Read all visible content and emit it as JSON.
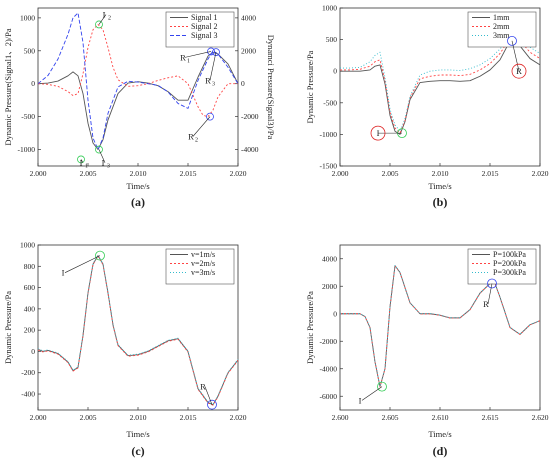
{
  "chart_data": [
    {
      "panel": "(a)",
      "type": "line",
      "xlabel": "Time/s",
      "ylabel": "Dynamic Pressure(Signal1、2)/Pa",
      "ylabel_right": "Dynamci Pressure(Signal3)/Pa",
      "xlim": [
        2.0,
        2.02
      ],
      "ylim": [
        -1250,
        1150
      ],
      "ylim_right": [
        -5000,
        4600
      ],
      "xticks": [
        "2.000",
        "2.005",
        "2.010",
        "2.015",
        "2.020"
      ],
      "yticks": [
        "1000",
        "500",
        "0",
        "-500",
        "-1000"
      ],
      "yticks_right": [
        "4000",
        "2000",
        "0",
        "-2000",
        "-4000"
      ],
      "legend": "top-right",
      "series": [
        {
          "name": "Signal 1",
          "color": "#555555",
          "dash": "",
          "axis": "left",
          "x": [
            2.0,
            2.001,
            2.002,
            2.003,
            2.0035,
            2.004,
            2.0045,
            2.005,
            2.0055,
            2.006,
            2.0065,
            2.007,
            2.008,
            2.009,
            2.01,
            2.011,
            2.012,
            2.013,
            2.014,
            2.015,
            2.016,
            2.017,
            2.0175,
            2.018,
            2.019,
            2.02
          ],
          "y": [
            0,
            10,
            40,
            120,
            180,
            120,
            -150,
            -600,
            -900,
            -1000,
            -850,
            -550,
            -150,
            10,
            30,
            10,
            -30,
            -120,
            -250,
            -250,
            100,
            420,
            480,
            450,
            300,
            0
          ]
        },
        {
          "name": "Signal 2",
          "color": "#ff4444",
          "dash": "2,2",
          "axis": "left",
          "x": [
            2.0,
            2.001,
            2.002,
            2.003,
            2.0035,
            2.004,
            2.0045,
            2.005,
            2.0055,
            2.006,
            2.0065,
            2.007,
            2.0075,
            2.008,
            2.009,
            2.01,
            2.011,
            2.012,
            2.013,
            2.014,
            2.015,
            2.016,
            2.0165,
            2.017,
            2.0175,
            2.018,
            2.019,
            2.02
          ],
          "y": [
            0,
            -10,
            -40,
            -120,
            -180,
            -150,
            150,
            550,
            820,
            900,
            820,
            550,
            250,
            60,
            -40,
            -30,
            0,
            50,
            90,
            120,
            0,
            -350,
            -480,
            -500,
            -400,
            -200,
            0,
            0
          ]
        },
        {
          "name": "Signal 3",
          "color": "#3344ee",
          "dash": "4,2",
          "axis": "right",
          "x": [
            2.0,
            2.001,
            2.002,
            2.003,
            2.0035,
            2.004,
            2.0045,
            2.005,
            2.0055,
            2.006,
            2.0065,
            2.007,
            2.008,
            2.009,
            2.01,
            2.011,
            2.012,
            2.013,
            2.014,
            2.015,
            2.016,
            2.017,
            2.0175,
            2.018,
            2.019,
            2.02
          ],
          "y": [
            0,
            500,
            1500,
            3000,
            4000,
            4300,
            2500,
            -1000,
            -3300,
            -4000,
            -3300,
            -1800,
            -200,
            150,
            100,
            0,
            -100,
            -500,
            -1200,
            -1500,
            200,
            1500,
            2000,
            1800,
            1000,
            0
          ]
        }
      ],
      "annotations": [
        {
          "text": "I",
          "sub": "1",
          "x": 2.0043,
          "y": -1150,
          "tx": 2.0045,
          "ty": -1200
        },
        {
          "text": "I",
          "sub": "3",
          "x": 2.0061,
          "y": -1000,
          "tx": 2.0067,
          "ty": -1200
        },
        {
          "text": "I",
          "sub": "2",
          "x": 2.0061,
          "y": 900,
          "tx": 2.0068,
          "ty": 1050
        },
        {
          "text": "R",
          "sub": "1",
          "x": 2.0173,
          "y": 490,
          "tx": 2.0147,
          "ty": 400
        },
        {
          "text": "R",
          "sub": "3",
          "x": 2.0178,
          "y": 480,
          "tx": 2.0172,
          "ty": 50
        },
        {
          "text": "R",
          "sub": "2",
          "x": 2.0172,
          "y": -500,
          "tx": 2.0155,
          "ty": -800
        }
      ]
    },
    {
      "panel": "(b)",
      "type": "line",
      "xlabel": "Time/s",
      "ylabel": "Dynamic Pressure/Pa",
      "xlim": [
        2.0,
        2.02
      ],
      "ylim": [
        -1500,
        1000
      ],
      "xticks": [
        "2.000",
        "2.005",
        "2.010",
        "2.015",
        "2.020"
      ],
      "yticks": [
        "1000",
        "500",
        "0",
        "-500",
        "-1000",
        "-1500"
      ],
      "legend": "top-right",
      "series": [
        {
          "name": "1mm",
          "color": "#555555",
          "dash": "",
          "x": [
            2.0,
            2.001,
            2.002,
            2.003,
            2.0035,
            2.004,
            2.0045,
            2.005,
            2.0055,
            2.006,
            2.0065,
            2.007,
            2.008,
            2.009,
            2.01,
            2.011,
            2.012,
            2.013,
            2.014,
            2.015,
            2.016,
            2.017,
            2.0175,
            2.018,
            2.019,
            2.02
          ],
          "y": [
            0,
            0,
            0,
            20,
            80,
            100,
            -200,
            -700,
            -950,
            -1000,
            -800,
            -450,
            -180,
            -160,
            -150,
            -150,
            -160,
            -150,
            -80,
            20,
            180,
            480,
            500,
            400,
            200,
            100
          ]
        },
        {
          "name": "2mm",
          "color": "#ff4444",
          "dash": "2,2",
          "x": [
            2.0,
            2.001,
            2.002,
            2.003,
            2.0035,
            2.004,
            2.0045,
            2.005,
            2.0055,
            2.006,
            2.0065,
            2.007,
            2.008,
            2.009,
            2.01,
            2.011,
            2.012,
            2.013,
            2.014,
            2.015,
            2.016,
            2.017,
            2.0175,
            2.018,
            2.019,
            2.02
          ],
          "y": [
            20,
            20,
            30,
            80,
            150,
            180,
            -150,
            -650,
            -900,
            -980,
            -780,
            -420,
            -120,
            -80,
            -60,
            -60,
            -70,
            -50,
            20,
            120,
            280,
            520,
            560,
            480,
            300,
            200
          ]
        },
        {
          "name": "3mm",
          "color": "#33bbcc",
          "dash": "1,2",
          "x": [
            2.0,
            2.001,
            2.002,
            2.003,
            2.0035,
            2.004,
            2.0045,
            2.005,
            2.0055,
            2.006,
            2.0065,
            2.007,
            2.008,
            2.009,
            2.01,
            2.011,
            2.012,
            2.013,
            2.014,
            2.015,
            2.016,
            2.017,
            2.0175,
            2.018,
            2.019,
            2.02
          ],
          "y": [
            50,
            50,
            60,
            150,
            250,
            300,
            -100,
            -600,
            -850,
            -950,
            -750,
            -400,
            -60,
            0,
            20,
            20,
            10,
            40,
            100,
            200,
            350,
            560,
            600,
            540,
            380,
            280
          ]
        }
      ],
      "annotations": [
        {
          "text": "I",
          "x": 2.0062,
          "y": -980,
          "tx": 2.0038,
          "ty": -980,
          "circle": true
        },
        {
          "text": "R",
          "x": 2.0172,
          "y": 480,
          "tx": 2.0179,
          "ty": 0,
          "circle": true
        }
      ]
    },
    {
      "panel": "(c)",
      "type": "line",
      "xlabel": "Time/s",
      "ylabel": "Dynamic Pressure/Pa",
      "xlim": [
        2.0,
        2.02
      ],
      "ylim": [
        -550,
        1000
      ],
      "xticks": [
        "2.000",
        "2.005",
        "2.010",
        "2.015",
        "2.020"
      ],
      "yticks": [
        "1000",
        "800",
        "600",
        "400",
        "200",
        "0",
        "-200",
        "-400"
      ],
      "legend": "top-right",
      "series": [
        {
          "name": "v=1m/s",
          "color": "#555555",
          "dash": "",
          "x": [
            2.0,
            2.0005,
            2.001,
            2.002,
            2.003,
            2.0035,
            2.004,
            2.0045,
            2.005,
            2.0055,
            2.006,
            2.0065,
            2.007,
            2.0075,
            2.008,
            2.009,
            2.01,
            2.011,
            2.012,
            2.013,
            2.014,
            2.015,
            2.016,
            2.017,
            2.0175,
            2.018,
            2.019,
            2.02
          ],
          "y": [
            20,
            0,
            10,
            -20,
            -100,
            -180,
            -150,
            150,
            550,
            820,
            900,
            820,
            550,
            250,
            60,
            -40,
            -30,
            0,
            50,
            100,
            120,
            0,
            -350,
            -480,
            -500,
            -420,
            -200,
            -80
          ]
        },
        {
          "name": "v=2m/s",
          "color": "#ff4444",
          "dash": "2,2",
          "x": [
            2.0,
            2.0005,
            2.001,
            2.002,
            2.003,
            2.0035,
            2.004,
            2.0045,
            2.005,
            2.0055,
            2.006,
            2.0065,
            2.007,
            2.0075,
            2.008,
            2.009,
            2.01,
            2.011,
            2.012,
            2.013,
            2.014,
            2.015,
            2.016,
            2.017,
            2.0175,
            2.018,
            2.019,
            2.02
          ],
          "y": [
            15,
            -5,
            5,
            -25,
            -105,
            -185,
            -155,
            145,
            545,
            815,
            895,
            815,
            545,
            245,
            55,
            -45,
            -35,
            -5,
            45,
            95,
            115,
            -5,
            -355,
            -485,
            -505,
            -425,
            -205,
            -85
          ]
        },
        {
          "name": "v=3m/s",
          "color": "#33bbcc",
          "dash": "1,2",
          "x": [
            2.0,
            2.0005,
            2.001,
            2.002,
            2.003,
            2.0035,
            2.004,
            2.0045,
            2.005,
            2.0055,
            2.006,
            2.0065,
            2.007,
            2.0075,
            2.008,
            2.009,
            2.01,
            2.011,
            2.012,
            2.013,
            2.014,
            2.015,
            2.016,
            2.017,
            2.0175,
            2.018,
            2.019,
            2.02
          ],
          "y": [
            25,
            5,
            15,
            -15,
            -95,
            -175,
            -145,
            155,
            555,
            825,
            905,
            825,
            555,
            255,
            65,
            -35,
            -25,
            5,
            55,
            105,
            125,
            5,
            -345,
            -475,
            -495,
            -415,
            -195,
            -75
          ]
        }
      ],
      "annotations": [
        {
          "text": "I",
          "x": 2.0062,
          "y": 900,
          "tx": 2.0027,
          "ty": 740,
          "circle": true
        },
        {
          "text": "R",
          "x": 2.0174,
          "y": -500,
          "tx": 2.0167,
          "ty": -330,
          "circle": true
        }
      ]
    },
    {
      "panel": "(d)",
      "type": "line",
      "xlabel": "Time/s",
      "ylabel": "Dynamic Pressure/Pa",
      "xlim": [
        2.6,
        2.62
      ],
      "ylim": [
        -7000,
        5000
      ],
      "xticks": [
        "2.600",
        "2.605",
        "2.610",
        "2.615",
        "2.620"
      ],
      "yticks": [
        "4000",
        "2000",
        "0",
        "-2000",
        "-4000",
        "-6000"
      ],
      "legend": "top-right",
      "series": [
        {
          "name": "P=100kPa",
          "color": "#555555",
          "dash": "",
          "x": [
            2.6,
            2.601,
            2.602,
            2.6025,
            2.603,
            2.6035,
            2.604,
            2.6045,
            2.605,
            2.6055,
            2.606,
            2.607,
            2.608,
            2.609,
            2.61,
            2.611,
            2.612,
            2.613,
            2.614,
            2.615,
            2.6155,
            2.616,
            2.617,
            2.618,
            2.619,
            2.62
          ],
          "y": [
            0,
            0,
            0,
            -200,
            -1000,
            -3500,
            -5300,
            -4000,
            500,
            3500,
            3000,
            800,
            0,
            0,
            -100,
            -300,
            -300,
            300,
            1500,
            2200,
            2200,
            1200,
            -1000,
            -1500,
            -800,
            -500
          ]
        },
        {
          "name": "P=200kPa",
          "color": "#ff4444",
          "dash": "2,2",
          "x": [
            2.6,
            2.601,
            2.602,
            2.6025,
            2.603,
            2.6035,
            2.604,
            2.6045,
            2.605,
            2.6055,
            2.606,
            2.607,
            2.608,
            2.609,
            2.61,
            2.611,
            2.612,
            2.613,
            2.614,
            2.615,
            2.6155,
            2.616,
            2.617,
            2.618,
            2.619,
            2.62
          ],
          "y": [
            0,
            0,
            0,
            -210,
            -1010,
            -3510,
            -5310,
            -4010,
            490,
            3490,
            2990,
            790,
            -10,
            -10,
            -110,
            -310,
            -310,
            290,
            1490,
            2190,
            2190,
            1190,
            -1010,
            -1510,
            -810,
            -510
          ]
        },
        {
          "name": "P=300kPa",
          "color": "#33bbcc",
          "dash": "1,2",
          "x": [
            2.6,
            2.601,
            2.602,
            2.6025,
            2.603,
            2.6035,
            2.604,
            2.6045,
            2.605,
            2.6055,
            2.606,
            2.607,
            2.608,
            2.609,
            2.61,
            2.611,
            2.612,
            2.613,
            2.614,
            2.615,
            2.6155,
            2.616,
            2.617,
            2.618,
            2.619,
            2.62
          ],
          "y": [
            0,
            0,
            0,
            -190,
            -990,
            -3490,
            -5290,
            -3990,
            510,
            3510,
            3010,
            810,
            10,
            10,
            -90,
            -290,
            -290,
            310,
            1510,
            2210,
            2210,
            1210,
            -990,
            -1490,
            -790,
            -490
          ]
        }
      ],
      "annotations": [
        {
          "text": "I",
          "x": 2.6042,
          "y": -5300,
          "tx": 2.6022,
          "ty": -6300,
          "circle": true
        },
        {
          "text": "R",
          "x": 2.6152,
          "y": 2200,
          "tx": 2.6148,
          "ty": 700,
          "circle": true
        }
      ]
    }
  ]
}
